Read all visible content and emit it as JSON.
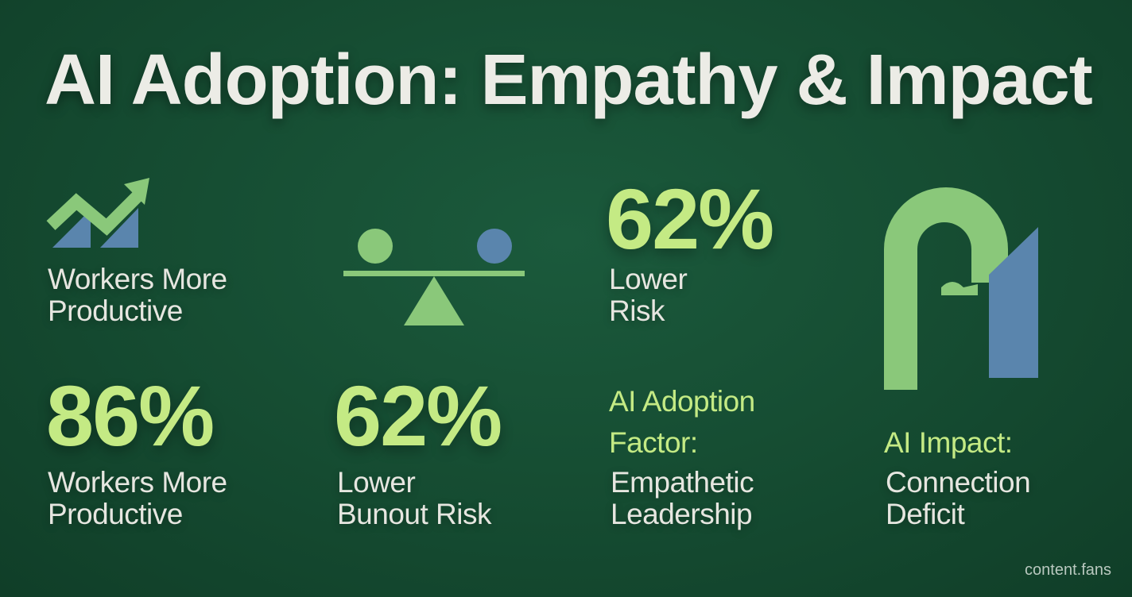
{
  "title": "AI Adoption: Empathy & Impact",
  "stats": {
    "top_left_label": [
      "Workers More",
      "Productive"
    ],
    "top_right_value": "62%",
    "top_right_label": [
      "Lower",
      "Risk"
    ],
    "bottom_left_value": "86%",
    "bottom_left_label": [
      "Workers More",
      "Productive"
    ],
    "bottom_mid_value": "62%",
    "bottom_mid_label": [
      "Lower",
      "Bunout Risk"
    ],
    "adoption_factor_heading": [
      "AI Adoption",
      "Factor:"
    ],
    "adoption_factor_value": [
      "Empathetic",
      "Leadership"
    ],
    "impact_heading": "AI Impact:",
    "impact_value": [
      "Connection",
      "Deficit"
    ]
  },
  "icons": [
    "trend-up-icon",
    "balance-scale-icon",
    "arch-icon"
  ],
  "colors": {
    "background": "#154b31",
    "accent_green": "#c4ea84",
    "shape_green": "#8ac87a",
    "shape_blue": "#5a85ad",
    "text": "#e6e6e0"
  },
  "footer": "content.fans"
}
